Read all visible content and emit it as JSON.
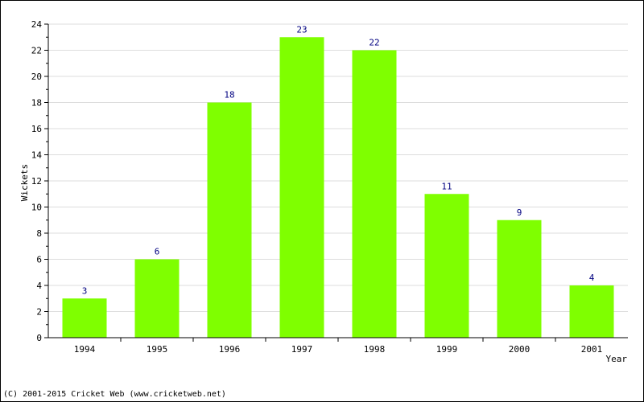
{
  "chart_data": {
    "type": "bar",
    "title": "",
    "xlabel": "Year",
    "ylabel": "Wickets",
    "categories": [
      "1994",
      "1995",
      "1996",
      "1997",
      "1998",
      "1999",
      "2000",
      "2001"
    ],
    "values": [
      3,
      6,
      18,
      23,
      22,
      11,
      9,
      4
    ],
    "ylim": [
      0,
      24
    ],
    "yticks": [
      0,
      2,
      4,
      6,
      8,
      10,
      12,
      14,
      16,
      18,
      20,
      22,
      24
    ],
    "grid": true,
    "bar_color": "#7fff00",
    "label_color": "#000080"
  },
  "footer": "(C) 2001-2015 Cricket Web (www.cricketweb.net)"
}
